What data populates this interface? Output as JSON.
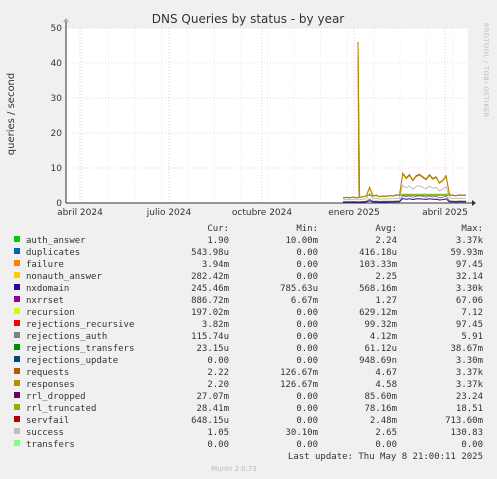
{
  "chart_data": {
    "type": "line",
    "title": "DNS Queries by status - by year",
    "ylabel": "queries / second",
    "ylim": [
      0,
      50
    ],
    "yticks": [
      0,
      10,
      20,
      30,
      40,
      50
    ],
    "x_tick_labels": [
      "abril 2024",
      "julio 2024",
      "octubre 2024",
      "enero 2025",
      "abril 2025"
    ],
    "side_label": "RRDTOOL / TOBI OETIKER",
    "columns": [
      "Cur:",
      "Min:",
      "Avg:",
      "Max:"
    ],
    "series": [
      {
        "name": "auth_answer",
        "color": "#00cc00",
        "cur": "1.90",
        "min": "10.00m",
        "avg": "2.24",
        "max": "3.37k"
      },
      {
        "name": "duplicates",
        "color": "#0066b3",
        "cur": "543.98u",
        "min": "0.00",
        "avg": "416.18u",
        "max": "59.93m"
      },
      {
        "name": "failure",
        "color": "#ff8000",
        "cur": "3.94m",
        "min": "0.00",
        "avg": "103.33m",
        "max": "97.45"
      },
      {
        "name": "nonauth_answer",
        "color": "#ffcc00",
        "cur": "282.42m",
        "min": "0.00",
        "avg": "2.25",
        "max": "32.14"
      },
      {
        "name": "nxdomain",
        "color": "#330099",
        "cur": "245.46m",
        "min": "785.63u",
        "avg": "568.16m",
        "max": "3.30k"
      },
      {
        "name": "nxrrset",
        "color": "#990099",
        "cur": "886.72m",
        "min": "6.67m",
        "avg": "1.27",
        "max": "67.06"
      },
      {
        "name": "recursion",
        "color": "#ccff00",
        "cur": "197.02m",
        "min": "0.00",
        "avg": "629.12m",
        "max": "7.12"
      },
      {
        "name": "rejections_recursive",
        "color": "#ff0000",
        "cur": "3.82m",
        "min": "0.00",
        "avg": "99.32m",
        "max": "97.45"
      },
      {
        "name": "rejections_auth",
        "color": "#808080",
        "cur": "115.74u",
        "min": "0.00",
        "avg": "4.12m",
        "max": "5.91"
      },
      {
        "name": "rejections_transfers",
        "color": "#008f00",
        "cur": "23.15u",
        "min": "0.00",
        "avg": "61.12u",
        "max": "38.67m"
      },
      {
        "name": "rejections_update",
        "color": "#00487d",
        "cur": "0.00",
        "min": "0.00",
        "avg": "948.69n",
        "max": "3.30m"
      },
      {
        "name": "requests",
        "color": "#b35a00",
        "cur": "2.22",
        "min": "126.67m",
        "avg": "4.67",
        "max": "3.37k"
      },
      {
        "name": "responses",
        "color": "#b38f00",
        "cur": "2.20",
        "min": "126.67m",
        "avg": "4.58",
        "max": "3.37k"
      },
      {
        "name": "rrl_dropped",
        "color": "#6b006b",
        "cur": "27.07m",
        "min": "0.00",
        "avg": "85.60m",
        "max": "23.24"
      },
      {
        "name": "rrl_truncated",
        "color": "#8fb300",
        "cur": "28.41m",
        "min": "0.00",
        "avg": "78.16m",
        "max": "18.51"
      },
      {
        "name": "servfail",
        "color": "#b30000",
        "cur": "648.15u",
        "min": "0.00",
        "avg": "2.48m",
        "max": "713.60m"
      },
      {
        "name": "success",
        "color": "#bebebe",
        "cur": "1.05",
        "min": "30.10m",
        "avg": "2.65",
        "max": "130.83"
      },
      {
        "name": "transfers",
        "color": "#80ff80",
        "cur": "0.00",
        "min": "0.00",
        "avg": "0.00",
        "max": "0.00"
      }
    ],
    "last_update": "Last update: Thu May  8 21:00:11 2025",
    "footer": "Munin 2.0.73",
    "grid": true,
    "legend_placement": "bottom"
  }
}
